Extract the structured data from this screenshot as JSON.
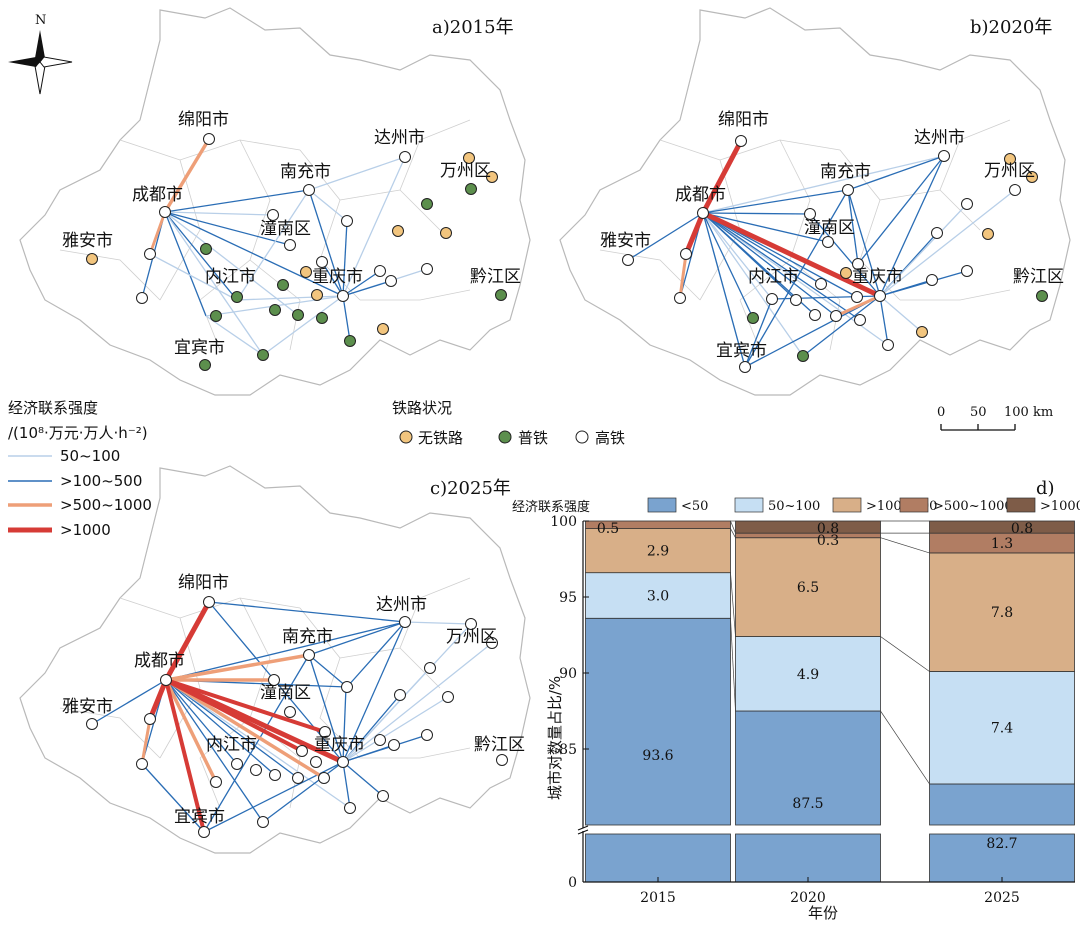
{
  "colors": {
    "boundary": "#b9b9b9",
    "link_50_100": "#b8cfe8",
    "link_100_500": "#2a6db5",
    "link_500_1000": "#ee9f78",
    "link_1000": "#d63b36",
    "station_none": "#f2c57e",
    "station_normal": "#5c8f4d",
    "station_hsr": "#ffffff",
    "bar_lt50": "#7aa3cf",
    "bar_50_100": "#c6dff3",
    "bar_100_500": "#d8af88",
    "bar_500_1000": "#b17d63",
    "bar_gt1000": "#7e5c48"
  },
  "compass": {
    "north_label": "N"
  },
  "panels": [
    {
      "id": "a",
      "title": "a)2015年"
    },
    {
      "id": "b",
      "title": "b)2020年"
    },
    {
      "id": "c",
      "title": "c)2025年"
    }
  ],
  "city_labels": [
    "绵阳市",
    "达州市",
    "南充市",
    "万州区",
    "成都市",
    "潼南区",
    "雅安市",
    "内江市",
    "重庆市",
    "黔江区",
    "宜宾市"
  ],
  "map_legend": {
    "title_line1": "经济联系强度",
    "title_line2": "/(10⁸·万元·万人·h⁻²)",
    "items": [
      "50~100",
      ">100~500",
      ">500~1000",
      ">1000"
    ]
  },
  "rail_legend": {
    "title": "铁路状况",
    "items": [
      "无铁路",
      "普铁",
      "高铁"
    ]
  },
  "scale_bar": {
    "labels": [
      "0",
      "50",
      "100 km"
    ]
  },
  "chart_data": {
    "type": "bar",
    "title": "d)",
    "legend_title": "经济联系强度",
    "legend_placement": "top",
    "categories": [
      "2015",
      "2020",
      "2025"
    ],
    "xlabel": "年份",
    "ylabel": "城市对数量占比/%",
    "ylim": [
      0,
      100
    ],
    "axis_break": [
      80,
      84
    ],
    "yticks": [
      "0",
      "85",
      "90",
      "95",
      "100"
    ],
    "series": [
      {
        "name": "<50",
        "values": [
          93.6,
          87.5,
          82.7
        ]
      },
      {
        "name": "50~100",
        "values": [
          3.0,
          4.9,
          7.4
        ]
      },
      {
        "name": ">100~500",
        "values": [
          2.9,
          6.5,
          7.8
        ]
      },
      {
        "name": ">500~1000",
        "values": [
          0.5,
          0.3,
          1.3
        ]
      },
      {
        "name": ">1000",
        "values": [
          0.0,
          0.8,
          0.8
        ]
      }
    ],
    "data_labels": [
      [
        "93.6",
        "3.0",
        "2.9",
        "0.5",
        ""
      ],
      [
        "87.5",
        "4.9",
        "6.5",
        "0.3",
        "0.8"
      ],
      [
        "82.7",
        "7.4",
        "7.8",
        "1.3",
        "0.8"
      ]
    ]
  }
}
